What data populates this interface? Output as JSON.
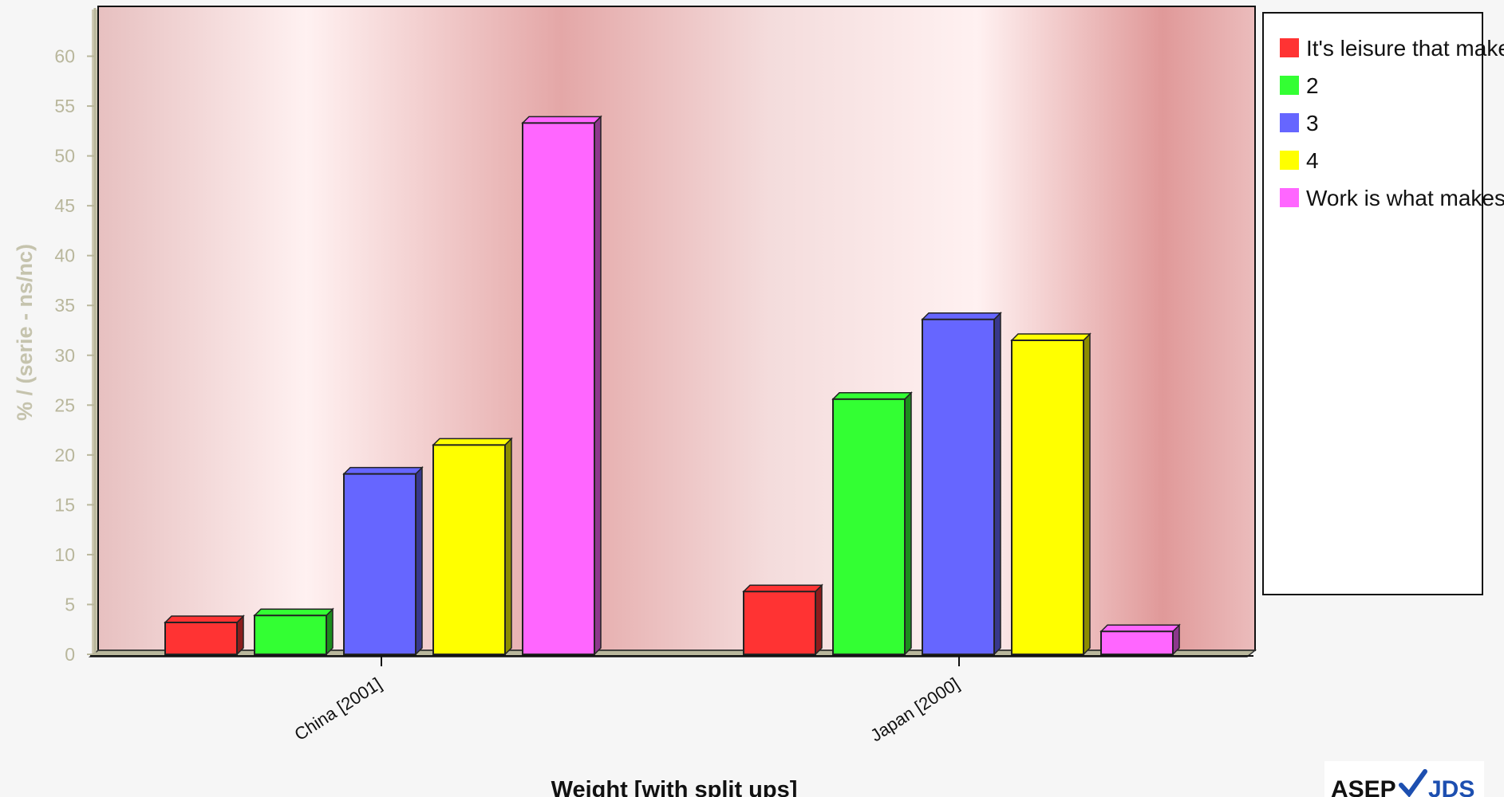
{
  "chart_data": {
    "type": "bar",
    "title": "",
    "xlabel": "Weight [with split ups]",
    "ylabel": "% / (serie - ns/nc)",
    "ylim": [
      0,
      65
    ],
    "yticks": [
      0,
      5,
      10,
      15,
      20,
      25,
      30,
      35,
      40,
      45,
      50,
      55,
      60
    ],
    "categories": [
      "China [2001]",
      "Japan [2000]"
    ],
    "series": [
      {
        "name": "It's leisure that make",
        "color": "#ff3333",
        "values": [
          3.2,
          6.3
        ]
      },
      {
        "name": "2",
        "color": "#33ff33",
        "values": [
          3.9,
          25.6
        ]
      },
      {
        "name": "3",
        "color": "#6666ff",
        "values": [
          18.1,
          33.6
        ]
      },
      {
        "name": "4",
        "color": "#ffff00",
        "values": [
          21.0,
          31.5
        ]
      },
      {
        "name": "Work is what makes",
        "color": "#ff66ff",
        "values": [
          53.3,
          2.3
        ]
      }
    ],
    "grid": false,
    "legend_position": "right",
    "style": "3d-bars"
  },
  "logo": {
    "text_left": "ASEP",
    "text_right": "JDS",
    "icon": "checkmark-icon"
  }
}
